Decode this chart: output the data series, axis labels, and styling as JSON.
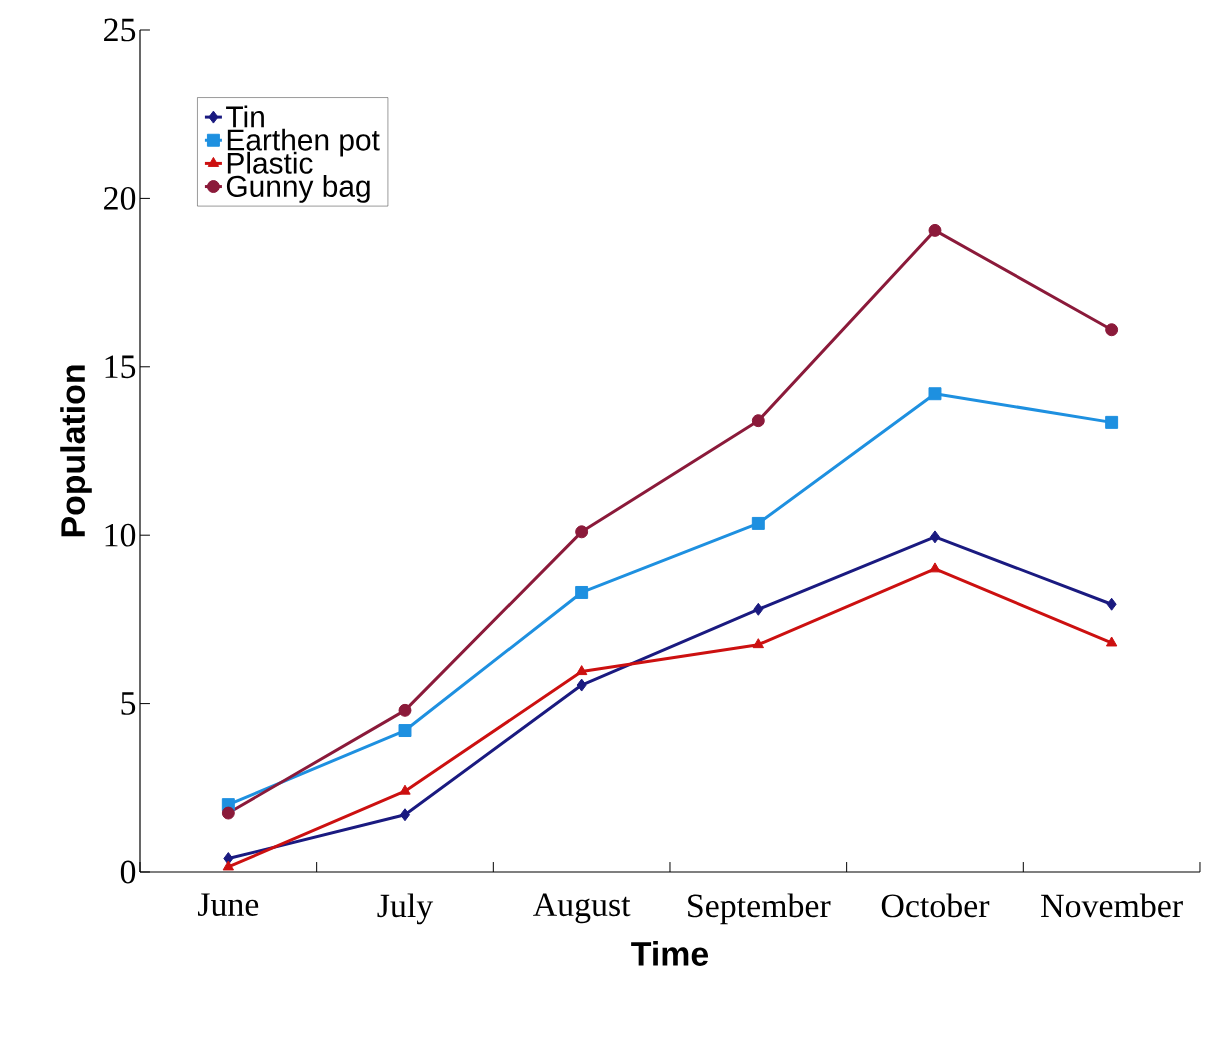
{
  "chart_data": {
    "type": "line",
    "xlabel": "Time",
    "ylabel": "Population",
    "categories": [
      "June",
      "July",
      "August",
      "September",
      "October",
      "November"
    ],
    "ylim": [
      0,
      25
    ],
    "yticks": [
      0,
      5,
      10,
      15,
      20,
      25
    ],
    "grid": false,
    "legend": "top left",
    "series": [
      {
        "name": "Tin",
        "color": "#1a1a80",
        "marker": "diamond",
        "values": [
          0.4,
          1.7,
          5.55,
          7.8,
          9.95,
          7.95
        ]
      },
      {
        "name": "Earthen pot",
        "color": "#1e90e0",
        "marker": "square",
        "values": [
          2.0,
          4.2,
          8.3,
          10.35,
          14.2,
          13.35
        ]
      },
      {
        "name": "Plastic",
        "color": "#cc1010",
        "marker": "triangle",
        "values": [
          0.15,
          2.4,
          5.95,
          6.75,
          9.0,
          6.8
        ]
      },
      {
        "name": "Gunny bag",
        "color": "#8b1a3a",
        "marker": "circle",
        "values": [
          1.75,
          4.8,
          10.1,
          13.4,
          19.05,
          16.1
        ]
      }
    ]
  }
}
